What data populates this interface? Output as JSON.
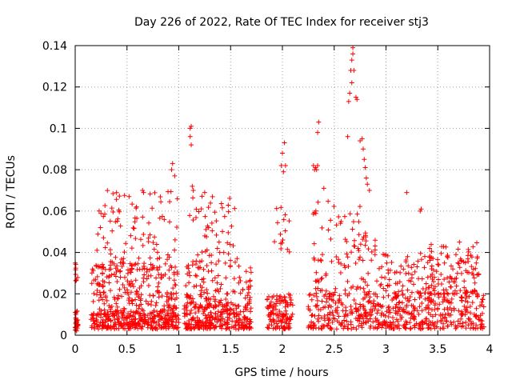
{
  "chart_data": {
    "type": "scatter",
    "title": "Day 226 of 2022, Rate Of TEC Index for receiver stj3",
    "xlabel": "GPS time / hours",
    "ylabel": "ROTI / TECUs",
    "xlim": [
      0,
      4
    ],
    "ylim": [
      0,
      0.14
    ],
    "grid": true,
    "marker": "+",
    "marker_color": "#ff0000",
    "x_ticks": [
      0,
      0.5,
      1,
      1.5,
      2,
      2.5,
      3,
      3.5,
      4
    ],
    "x_tick_labels": [
      "0",
      "0.5",
      "1",
      "1.5",
      "2",
      "2.5",
      "3",
      "3.5",
      "4"
    ],
    "y_ticks": [
      0,
      0.02,
      0.04,
      0.06,
      0.08,
      0.1,
      0.12,
      0.14
    ],
    "y_tick_labels": [
      "0",
      "0.02",
      "0.04",
      "0.06",
      "0.08",
      "0.1",
      "0.12",
      "0.14"
    ],
    "clusters": [
      {
        "x_range": [
          0.0,
          0.03
        ],
        "y_range": [
          0.002,
          0.012
        ],
        "count": 30
      },
      {
        "x_range": [
          0.0,
          0.03
        ],
        "y_range": [
          0.026,
          0.039
        ],
        "count": 8
      },
      {
        "x_range": [
          0.15,
          1.0
        ],
        "y_range": [
          0.003,
          0.012
        ],
        "count": 320
      },
      {
        "x_range": [
          0.15,
          1.0
        ],
        "y_range": [
          0.012,
          0.035
        ],
        "count": 200
      },
      {
        "x_range": [
          0.2,
          1.0
        ],
        "y_range": [
          0.03,
          0.07
        ],
        "count": 110
      },
      {
        "x_range": [
          1.05,
          1.7
        ],
        "y_range": [
          0.003,
          0.015
        ],
        "count": 260
      },
      {
        "x_range": [
          1.05,
          1.7
        ],
        "y_range": [
          0.015,
          0.035
        ],
        "count": 110
      },
      {
        "x_range": [
          1.1,
          1.6
        ],
        "y_range": [
          0.035,
          0.07
        ],
        "count": 55
      },
      {
        "x_range": [
          1.85,
          2.1
        ],
        "y_range": [
          0.003,
          0.02
        ],
        "count": 120
      },
      {
        "x_range": [
          1.9,
          2.1
        ],
        "y_range": [
          0.04,
          0.066
        ],
        "count": 15
      },
      {
        "x_range": [
          2.25,
          3.95
        ],
        "y_range": [
          0.003,
          0.02
        ],
        "count": 520
      },
      {
        "x_range": [
          2.3,
          3.9
        ],
        "y_range": [
          0.02,
          0.04
        ],
        "count": 190
      },
      {
        "x_range": [
          2.3,
          2.9
        ],
        "y_range": [
          0.04,
          0.065
        ],
        "count": 45
      },
      {
        "x_range": [
          3.3,
          3.9
        ],
        "y_range": [
          0.02,
          0.045
        ],
        "count": 60
      }
    ],
    "highlight_points": [
      {
        "x": 0.93,
        "y": 0.08
      },
      {
        "x": 0.94,
        "y": 0.083
      },
      {
        "x": 0.96,
        "y": 0.077
      },
      {
        "x": 1.11,
        "y": 0.1
      },
      {
        "x": 1.12,
        "y": 0.101
      },
      {
        "x": 1.11,
        "y": 0.096
      },
      {
        "x": 1.12,
        "y": 0.092
      },
      {
        "x": 1.13,
        "y": 0.072
      },
      {
        "x": 1.14,
        "y": 0.07
      },
      {
        "x": 1.25,
        "y": 0.069
      },
      {
        "x": 0.65,
        "y": 0.07
      },
      {
        "x": 0.66,
        "y": 0.069
      },
      {
        "x": 0.52,
        "y": 0.067
      },
      {
        "x": 2.0,
        "y": 0.088
      },
      {
        "x": 2.02,
        "y": 0.093
      },
      {
        "x": 2.03,
        "y": 0.082
      },
      {
        "x": 2.01,
        "y": 0.079
      },
      {
        "x": 1.99,
        "y": 0.082
      },
      {
        "x": 2.3,
        "y": 0.082
      },
      {
        "x": 2.31,
        "y": 0.08
      },
      {
        "x": 2.32,
        "y": 0.081
      },
      {
        "x": 2.33,
        "y": 0.08
      },
      {
        "x": 2.34,
        "y": 0.082
      },
      {
        "x": 2.35,
        "y": 0.103
      },
      {
        "x": 2.34,
        "y": 0.098
      },
      {
        "x": 2.4,
        "y": 0.071
      },
      {
        "x": 2.63,
        "y": 0.096
      },
      {
        "x": 2.64,
        "y": 0.113
      },
      {
        "x": 2.65,
        "y": 0.117
      },
      {
        "x": 2.66,
        "y": 0.128
      },
      {
        "x": 2.67,
        "y": 0.133
      },
      {
        "x": 2.68,
        "y": 0.136
      },
      {
        "x": 2.68,
        "y": 0.139
      },
      {
        "x": 2.69,
        "y": 0.128
      },
      {
        "x": 2.67,
        "y": 0.122
      },
      {
        "x": 2.71,
        "y": 0.115
      },
      {
        "x": 2.72,
        "y": 0.114
      },
      {
        "x": 2.75,
        "y": 0.094
      },
      {
        "x": 2.77,
        "y": 0.095
      },
      {
        "x": 2.78,
        "y": 0.09
      },
      {
        "x": 2.79,
        "y": 0.085
      },
      {
        "x": 2.8,
        "y": 0.081
      },
      {
        "x": 2.81,
        "y": 0.076
      },
      {
        "x": 2.82,
        "y": 0.073
      },
      {
        "x": 2.84,
        "y": 0.07
      },
      {
        "x": 3.2,
        "y": 0.069
      },
      {
        "x": 3.33,
        "y": 0.06
      },
      {
        "x": 3.34,
        "y": 0.061
      }
    ]
  }
}
